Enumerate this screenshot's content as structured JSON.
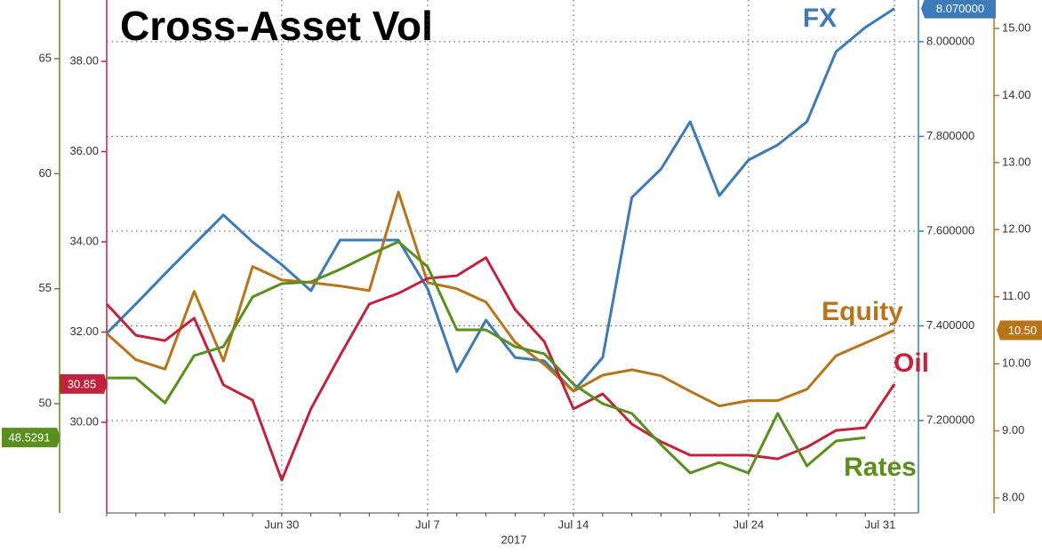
{
  "chart_data": {
    "type": "line",
    "title": "Cross-Asset Vol",
    "xlabel": "2017",
    "categories": [
      null,
      null,
      null,
      null,
      null,
      null,
      "Jun 30",
      null,
      null,
      null,
      null,
      "Jul 7",
      null,
      null,
      null,
      null,
      "Jul 14",
      null,
      null,
      null,
      null,
      null,
      "Jul 24",
      null,
      null,
      null,
      null,
      "Jul 31"
    ],
    "ylim": [
      27.99,
      39.36
    ],
    "yticks": [
      {
        "value": 30,
        "label": "30.00"
      },
      {
        "value": 32,
        "label": "32.00"
      },
      {
        "value": 34,
        "label": "34.00"
      },
      {
        "value": 36,
        "label": "36.00"
      },
      {
        "value": 38,
        "label": "38.00"
      }
    ],
    "y2lim": [
      7.0047,
      8.088
    ],
    "y2ticks": [
      {
        "value": 7.2,
        "label": "7.200000"
      },
      {
        "value": 7.4,
        "label": "7.400000"
      },
      {
        "value": 7.6,
        "label": "7.600000"
      },
      {
        "value": 7.8,
        "label": "7.800000"
      },
      {
        "value": 8.0,
        "label": "8.000000"
      }
    ],
    "y3lim": [
      45.25,
      67.55
    ],
    "y3ticks": [
      50,
      55,
      60,
      65
    ],
    "y4lim": [
      7.775,
      15.424
    ],
    "y4ticks": [
      {
        "value": 8,
        "label": "8.00"
      },
      {
        "value": 9,
        "label": "9.00"
      },
      {
        "value": 10,
        "label": "10.00"
      },
      {
        "value": 11,
        "label": "11.00"
      },
      {
        "value": 12,
        "label": "12.00"
      },
      {
        "value": 13,
        "label": "13.00"
      },
      {
        "value": 14,
        "label": "14.00"
      },
      {
        "value": 15,
        "label": "15.00"
      }
    ],
    "grid": true,
    "series": [
      {
        "name": "FX",
        "color": "#3d7ab8",
        "axis": "y2",
        "values": [
          7.384,
          7.446,
          7.51,
          7.572,
          7.634,
          7.577,
          7.529,
          7.474,
          7.581,
          7.581,
          7.581,
          7.478,
          7.303,
          7.412,
          7.333,
          7.326,
          7.262,
          7.333,
          7.671,
          7.731,
          7.831,
          7.675,
          7.75,
          7.782,
          7.831,
          7.979,
          8.03,
          8.07
        ],
        "value_labels": [
          null,
          null,
          null,
          null,
          null,
          null,
          null,
          null,
          null,
          null,
          null,
          null,
          null,
          null,
          null,
          null,
          null,
          null,
          null,
          null,
          null,
          null,
          null,
          null,
          null,
          null,
          null,
          "8.070000"
        ]
      },
      {
        "name": "Equity",
        "color": "#b8741a",
        "axis": "y4",
        "values": [
          10.45,
          10.06,
          9.92,
          11.08,
          10.04,
          11.45,
          11.25,
          11.21,
          11.16,
          11.09,
          12.56,
          11.21,
          11.12,
          10.92,
          10.32,
          9.99,
          9.59,
          9.83,
          9.91,
          9.82,
          9.59,
          9.37,
          9.45,
          9.45,
          9.62,
          10.12,
          10.31,
          10.5
        ],
        "value_labels": [
          null,
          null,
          null,
          null,
          null,
          null,
          null,
          null,
          null,
          null,
          null,
          null,
          null,
          null,
          null,
          null,
          null,
          null,
          null,
          null,
          null,
          null,
          null,
          null,
          null,
          null,
          null,
          "10.50"
        ]
      },
      {
        "name": "Oil",
        "color": "#c0243c",
        "axis": "y",
        "values": [
          32.62,
          31.93,
          31.81,
          32.31,
          30.83,
          30.49,
          28.72,
          30.3,
          31.48,
          32.62,
          32.86,
          33.19,
          33.25,
          33.65,
          32.5,
          31.79,
          30.3,
          30.63,
          29.96,
          29.57,
          29.27,
          29.27,
          29.27,
          29.19,
          29.45,
          29.82,
          29.88,
          30.85
        ],
        "value_labels": [
          null,
          null,
          null,
          null,
          null,
          null,
          null,
          null,
          null,
          null,
          null,
          null,
          null,
          null,
          null,
          null,
          null,
          null,
          null,
          null,
          null,
          null,
          null,
          null,
          null,
          null,
          null,
          "30.85"
        ]
      },
      {
        "name": "Rates",
        "color": "#5a8f1e",
        "axis": "y3",
        "values": [
          51.12,
          51.12,
          50.04,
          52.09,
          52.48,
          54.64,
          55.22,
          55.3,
          55.84,
          56.46,
          57.04,
          55.95,
          53.21,
          53.21,
          52.48,
          52.17,
          50.85,
          50.0,
          49.58,
          48.22,
          46.99,
          47.45,
          46.99,
          49.58,
          47.3,
          48.38,
          48.5291,
          null
        ],
        "value_labels": [
          null,
          null,
          null,
          null,
          null,
          null,
          null,
          null,
          null,
          null,
          null,
          null,
          null,
          null,
          null,
          null,
          null,
          null,
          null,
          null,
          null,
          null,
          null,
          null,
          null,
          null,
          "48.5291",
          null
        ]
      }
    ]
  }
}
